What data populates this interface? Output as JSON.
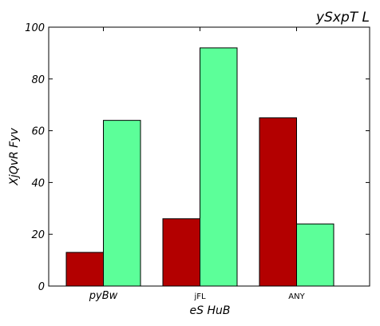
{
  "chart_data": {
    "type": "bar",
    "title": "ySxpT L",
    "xlabel": "eS HuB",
    "ylabel": "XjQvR Fyv",
    "categories": [
      "pyBw",
      "jFL",
      "ANY"
    ],
    "ylim": [
      0,
      100
    ],
    "yticks": [
      0,
      20,
      40,
      60,
      80,
      100
    ],
    "grid": false,
    "series": [
      {
        "color": "#b30000",
        "values": [
          13,
          26,
          65
        ]
      },
      {
        "color": "#5cff99",
        "values": [
          64,
          92,
          24
        ]
      }
    ]
  }
}
